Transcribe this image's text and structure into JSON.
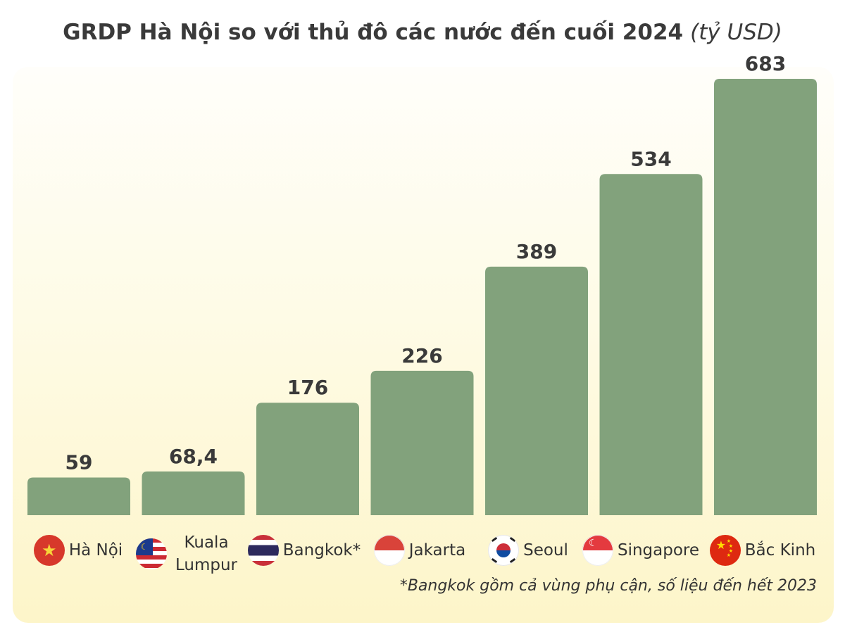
{
  "colors": {
    "bar": "#82a27c",
    "value_text": "#3a3a3a",
    "panel_bottom": "#fdf5c9"
  },
  "chart_data": {
    "type": "bar",
    "title": "GRDP Hà Nội so với thủ đô các nước đến cuối 2024",
    "unit": "(tỷ USD)",
    "categories": [
      "Hà Nội",
      "Kuala Lumpur",
      "Bangkok*",
      "Jakarta",
      "Seoul",
      "Singapore",
      "Bắc Kinh"
    ],
    "values": [
      59,
      68.4,
      176,
      226,
      389,
      534,
      683
    ],
    "value_labels": [
      "59",
      "68,4",
      "176",
      "226",
      "389",
      "534",
      "683"
    ],
    "flags": [
      "vietnam-flag",
      "malaysia-flag",
      "thailand-flag",
      "indonesia-flag",
      "south-korea-flag",
      "singapore-flag",
      "china-flag"
    ],
    "ylim": [
      0,
      683
    ],
    "grid": false,
    "legend": "none"
  },
  "footnote": "*Bangkok gồm cả vùng phụ cận, số liệu đến hết 2023"
}
